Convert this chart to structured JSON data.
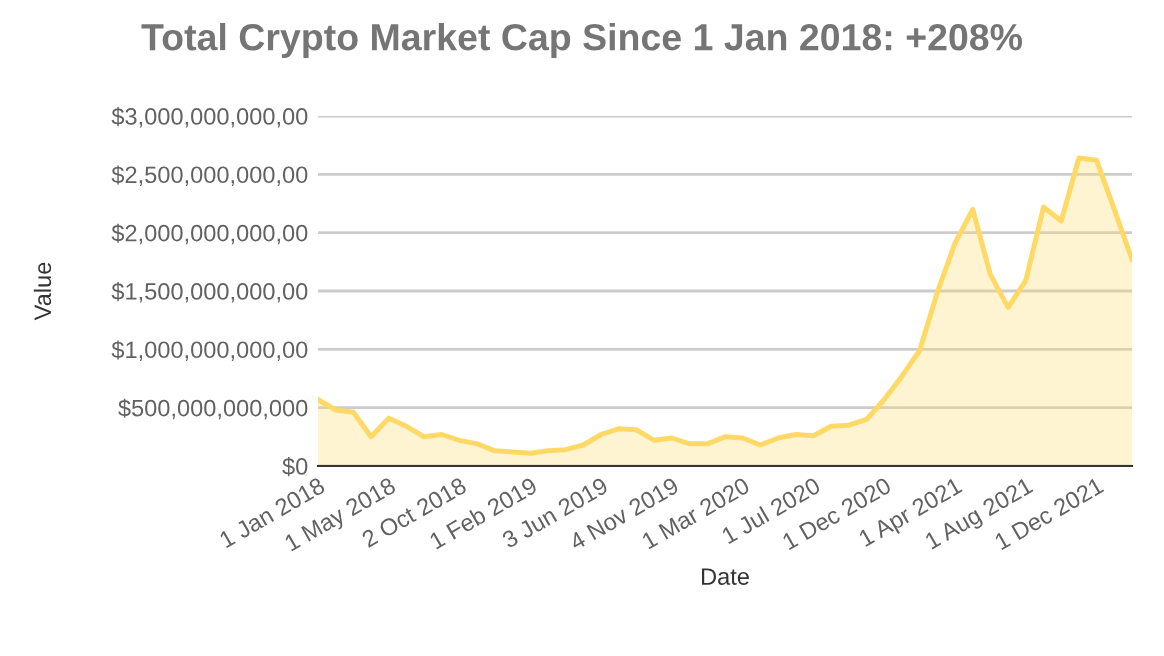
{
  "chart_data": {
    "type": "area",
    "title": "Total Crypto Market Cap Since 1 Jan 2018: +208%",
    "xlabel": "Date",
    "ylabel": "Value",
    "categories": [
      "1 Jan 2018",
      null,
      null,
      null,
      "1 May 2018",
      null,
      null,
      null,
      "2 Oct 2018",
      null,
      null,
      null,
      "1 Feb 2019",
      null,
      null,
      null,
      "3 Jun 2019",
      null,
      null,
      null,
      "4 Nov 2019",
      null,
      null,
      null,
      "1 Mar 2020",
      null,
      null,
      null,
      "1 Jul 2020",
      null,
      null,
      null,
      "1 Dec 2020",
      null,
      null,
      null,
      "1 Apr 2021",
      null,
      null,
      null,
      "1 Aug 2021",
      null,
      null,
      null,
      "1 Dec 2021",
      null,
      null
    ],
    "series": [
      {
        "color": "#ffd966",
        "values": [
          570000000000,
          480000000000,
          460000000000,
          250000000000,
          410000000000,
          340000000000,
          250000000000,
          270000000000,
          220000000000,
          190000000000,
          130000000000,
          120000000000,
          110000000000,
          130000000000,
          140000000000,
          180000000000,
          270000000000,
          320000000000,
          310000000000,
          220000000000,
          240000000000,
          190000000000,
          190000000000,
          250000000000,
          240000000000,
          180000000000,
          240000000000,
          270000000000,
          260000000000,
          340000000000,
          350000000000,
          400000000000,
          570000000000,
          770000000000,
          990000000000,
          1490000000000,
          1910000000000,
          2200000000000,
          1640000000000,
          1360000000000,
          1590000000000,
          2220000000000,
          2100000000000,
          2640000000000,
          2620000000000,
          2200000000000,
          1770000000000
        ]
      }
    ],
    "ylim": [
      0,
      3000000000000
    ],
    "yticks": [
      {
        "value": 0,
        "label": "$0"
      },
      {
        "value": 500000000000,
        "label": "$500,000,000,000"
      },
      {
        "value": 1000000000000,
        "label": "$1,000,000,000,00"
      },
      {
        "value": 1500000000000,
        "label": "$1,500,000,000,00"
      },
      {
        "value": 2000000000000,
        "label": "$2,000,000,000,00"
      },
      {
        "value": 2500000000000,
        "label": "$2,500,000,000,00"
      },
      {
        "value": 3000000000000,
        "label": "$3,000,000,000,00"
      }
    ],
    "grid": "y"
  }
}
